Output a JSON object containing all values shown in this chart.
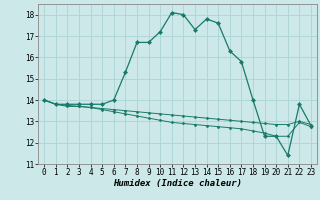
{
  "xlabel": "Humidex (Indice chaleur)",
  "background_color": "#cce8e8",
  "grid_color": "#aad4d4",
  "line_color": "#1a7a6a",
  "x_values": [
    0,
    1,
    2,
    3,
    4,
    5,
    6,
    7,
    8,
    9,
    10,
    11,
    12,
    13,
    14,
    15,
    16,
    17,
    18,
    19,
    20,
    21,
    22,
    23
  ],
  "y_main": [
    14.0,
    13.8,
    13.8,
    13.8,
    13.8,
    13.8,
    14.0,
    15.3,
    16.7,
    16.7,
    17.2,
    18.1,
    18.0,
    17.3,
    17.8,
    17.6,
    16.3,
    15.8,
    14.0,
    12.3,
    12.3,
    11.4,
    13.8,
    12.8
  ],
  "y_line2": [
    14.0,
    13.8,
    13.7,
    13.7,
    13.65,
    13.6,
    13.55,
    13.5,
    13.45,
    13.4,
    13.35,
    13.3,
    13.25,
    13.2,
    13.15,
    13.1,
    13.05,
    13.0,
    12.95,
    12.9,
    12.85,
    12.85,
    13.0,
    12.85
  ],
  "y_line3": [
    14.0,
    13.8,
    13.75,
    13.7,
    13.65,
    13.55,
    13.45,
    13.35,
    13.25,
    13.15,
    13.05,
    12.95,
    12.9,
    12.85,
    12.8,
    12.75,
    12.7,
    12.65,
    12.55,
    12.45,
    12.3,
    12.3,
    12.95,
    12.75
  ],
  "ylim": [
    11,
    18.5
  ],
  "xlim": [
    -0.5,
    23.5
  ],
  "yticks": [
    11,
    12,
    13,
    14,
    15,
    16,
    17,
    18
  ],
  "xticks": [
    0,
    1,
    2,
    3,
    4,
    5,
    6,
    7,
    8,
    9,
    10,
    11,
    12,
    13,
    14,
    15,
    16,
    17,
    18,
    19,
    20,
    21,
    22,
    23
  ]
}
